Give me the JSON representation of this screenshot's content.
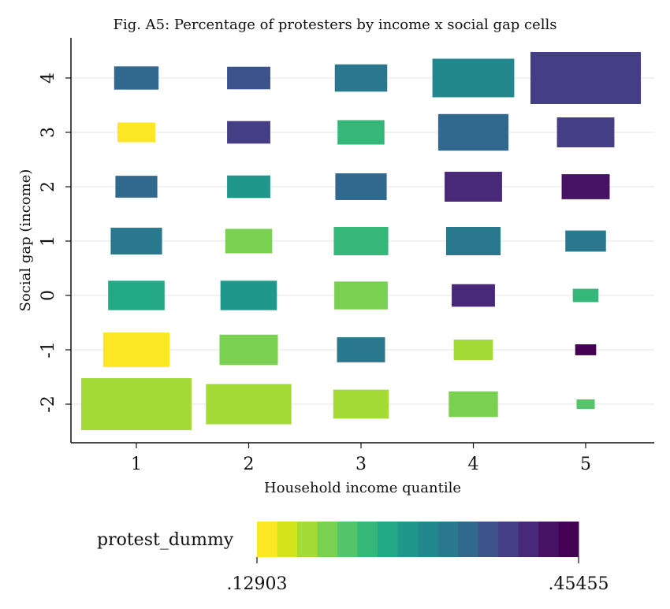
{
  "chart_data": {
    "type": "heatmap",
    "title": "Fig. A5: Percentage of protesters by income x social gap cells",
    "xlabel": "Household income quantile",
    "ylabel": "Social gap (income)",
    "x_ticks": [
      "1",
      "2",
      "3",
      "4",
      "5"
    ],
    "y_ticks": [
      "4",
      "3",
      "2",
      "1",
      "0",
      "-1",
      "-2"
    ],
    "xlim": [
      0.5,
      5.6
    ],
    "ylim": [
      -2.8,
      4.7
    ],
    "grid": true,
    "cell_size_encodes": "number of observations (relative)",
    "cells": [
      {
        "x": 1,
        "y": 4,
        "value": 0.35,
        "rel_size": 0.18
      },
      {
        "x": 2,
        "y": 4,
        "value": 0.36,
        "rel_size": 0.17
      },
      {
        "x": 3,
        "y": 4,
        "value": 0.32,
        "rel_size": 0.25
      },
      {
        "x": 4,
        "y": 4,
        "value": 0.31,
        "rel_size": 0.55
      },
      {
        "x": 5,
        "y": 4,
        "value": 0.38,
        "rel_size": 1.0
      },
      {
        "x": 1,
        "y": 3,
        "value": 0.14,
        "rel_size": 0.13
      },
      {
        "x": 2,
        "y": 3,
        "value": 0.38,
        "rel_size": 0.17
      },
      {
        "x": 3,
        "y": 3,
        "value": 0.24,
        "rel_size": 0.2
      },
      {
        "x": 4,
        "y": 3,
        "value": 0.35,
        "rel_size": 0.45
      },
      {
        "x": 5,
        "y": 3,
        "value": 0.38,
        "rel_size": 0.3
      },
      {
        "x": 1,
        "y": 2,
        "value": 0.34,
        "rel_size": 0.16
      },
      {
        "x": 2,
        "y": 2,
        "value": 0.29,
        "rel_size": 0.17
      },
      {
        "x": 3,
        "y": 2,
        "value": 0.35,
        "rel_size": 0.24
      },
      {
        "x": 4,
        "y": 2,
        "value": 0.4,
        "rel_size": 0.3
      },
      {
        "x": 5,
        "y": 2,
        "value": 0.43,
        "rel_size": 0.21
      },
      {
        "x": 1,
        "y": 1,
        "value": 0.32,
        "rel_size": 0.24
      },
      {
        "x": 2,
        "y": 1,
        "value": 0.2,
        "rel_size": 0.2
      },
      {
        "x": 3,
        "y": 1,
        "value": 0.25,
        "rel_size": 0.27
      },
      {
        "x": 4,
        "y": 1,
        "value": 0.33,
        "rel_size": 0.27
      },
      {
        "x": 5,
        "y": 1,
        "value": 0.33,
        "rel_size": 0.15
      },
      {
        "x": 1,
        "y": 0,
        "value": 0.27,
        "rel_size": 0.29
      },
      {
        "x": 2,
        "y": 0,
        "value": 0.29,
        "rel_size": 0.29
      },
      {
        "x": 3,
        "y": 0,
        "value": 0.2,
        "rel_size": 0.26
      },
      {
        "x": 4,
        "y": 0,
        "value": 0.4,
        "rel_size": 0.17
      },
      {
        "x": 5,
        "y": 0,
        "value": 0.24,
        "rel_size": 0.06
      },
      {
        "x": 1,
        "y": -1,
        "value": 0.13,
        "rel_size": 0.4
      },
      {
        "x": 2,
        "y": -1,
        "value": 0.2,
        "rel_size": 0.31
      },
      {
        "x": 3,
        "y": -1,
        "value": 0.32,
        "rel_size": 0.21
      },
      {
        "x": 4,
        "y": -1,
        "value": 0.17,
        "rel_size": 0.14
      },
      {
        "x": 5,
        "y": -1,
        "value": 0.45,
        "rel_size": 0.04
      },
      {
        "x": 1,
        "y": -2,
        "value": 0.18,
        "rel_size": 1.0
      },
      {
        "x": 2,
        "y": -2,
        "value": 0.17,
        "rel_size": 0.6
      },
      {
        "x": 3,
        "y": -2,
        "value": 0.18,
        "rel_size": 0.28
      },
      {
        "x": 4,
        "y": -2,
        "value": 0.2,
        "rel_size": 0.22
      },
      {
        "x": 5,
        "y": -2,
        "value": 0.23,
        "rel_size": 0.03
      }
    ],
    "legend": {
      "title": "protest_dummy",
      "min_label": ".12903",
      "max_label": ".45455",
      "min": 0.12903,
      "max": 0.45455,
      "placement": "bottom",
      "colors": [
        "#fde725",
        "#d2e21b",
        "#a5db36",
        "#7ad151",
        "#54c568",
        "#35b779",
        "#22a884",
        "#1f988b",
        "#23888e",
        "#2a788e",
        "#31688e",
        "#3b528b",
        "#433e85",
        "#482878",
        "#471164",
        "#440154"
      ]
    }
  }
}
